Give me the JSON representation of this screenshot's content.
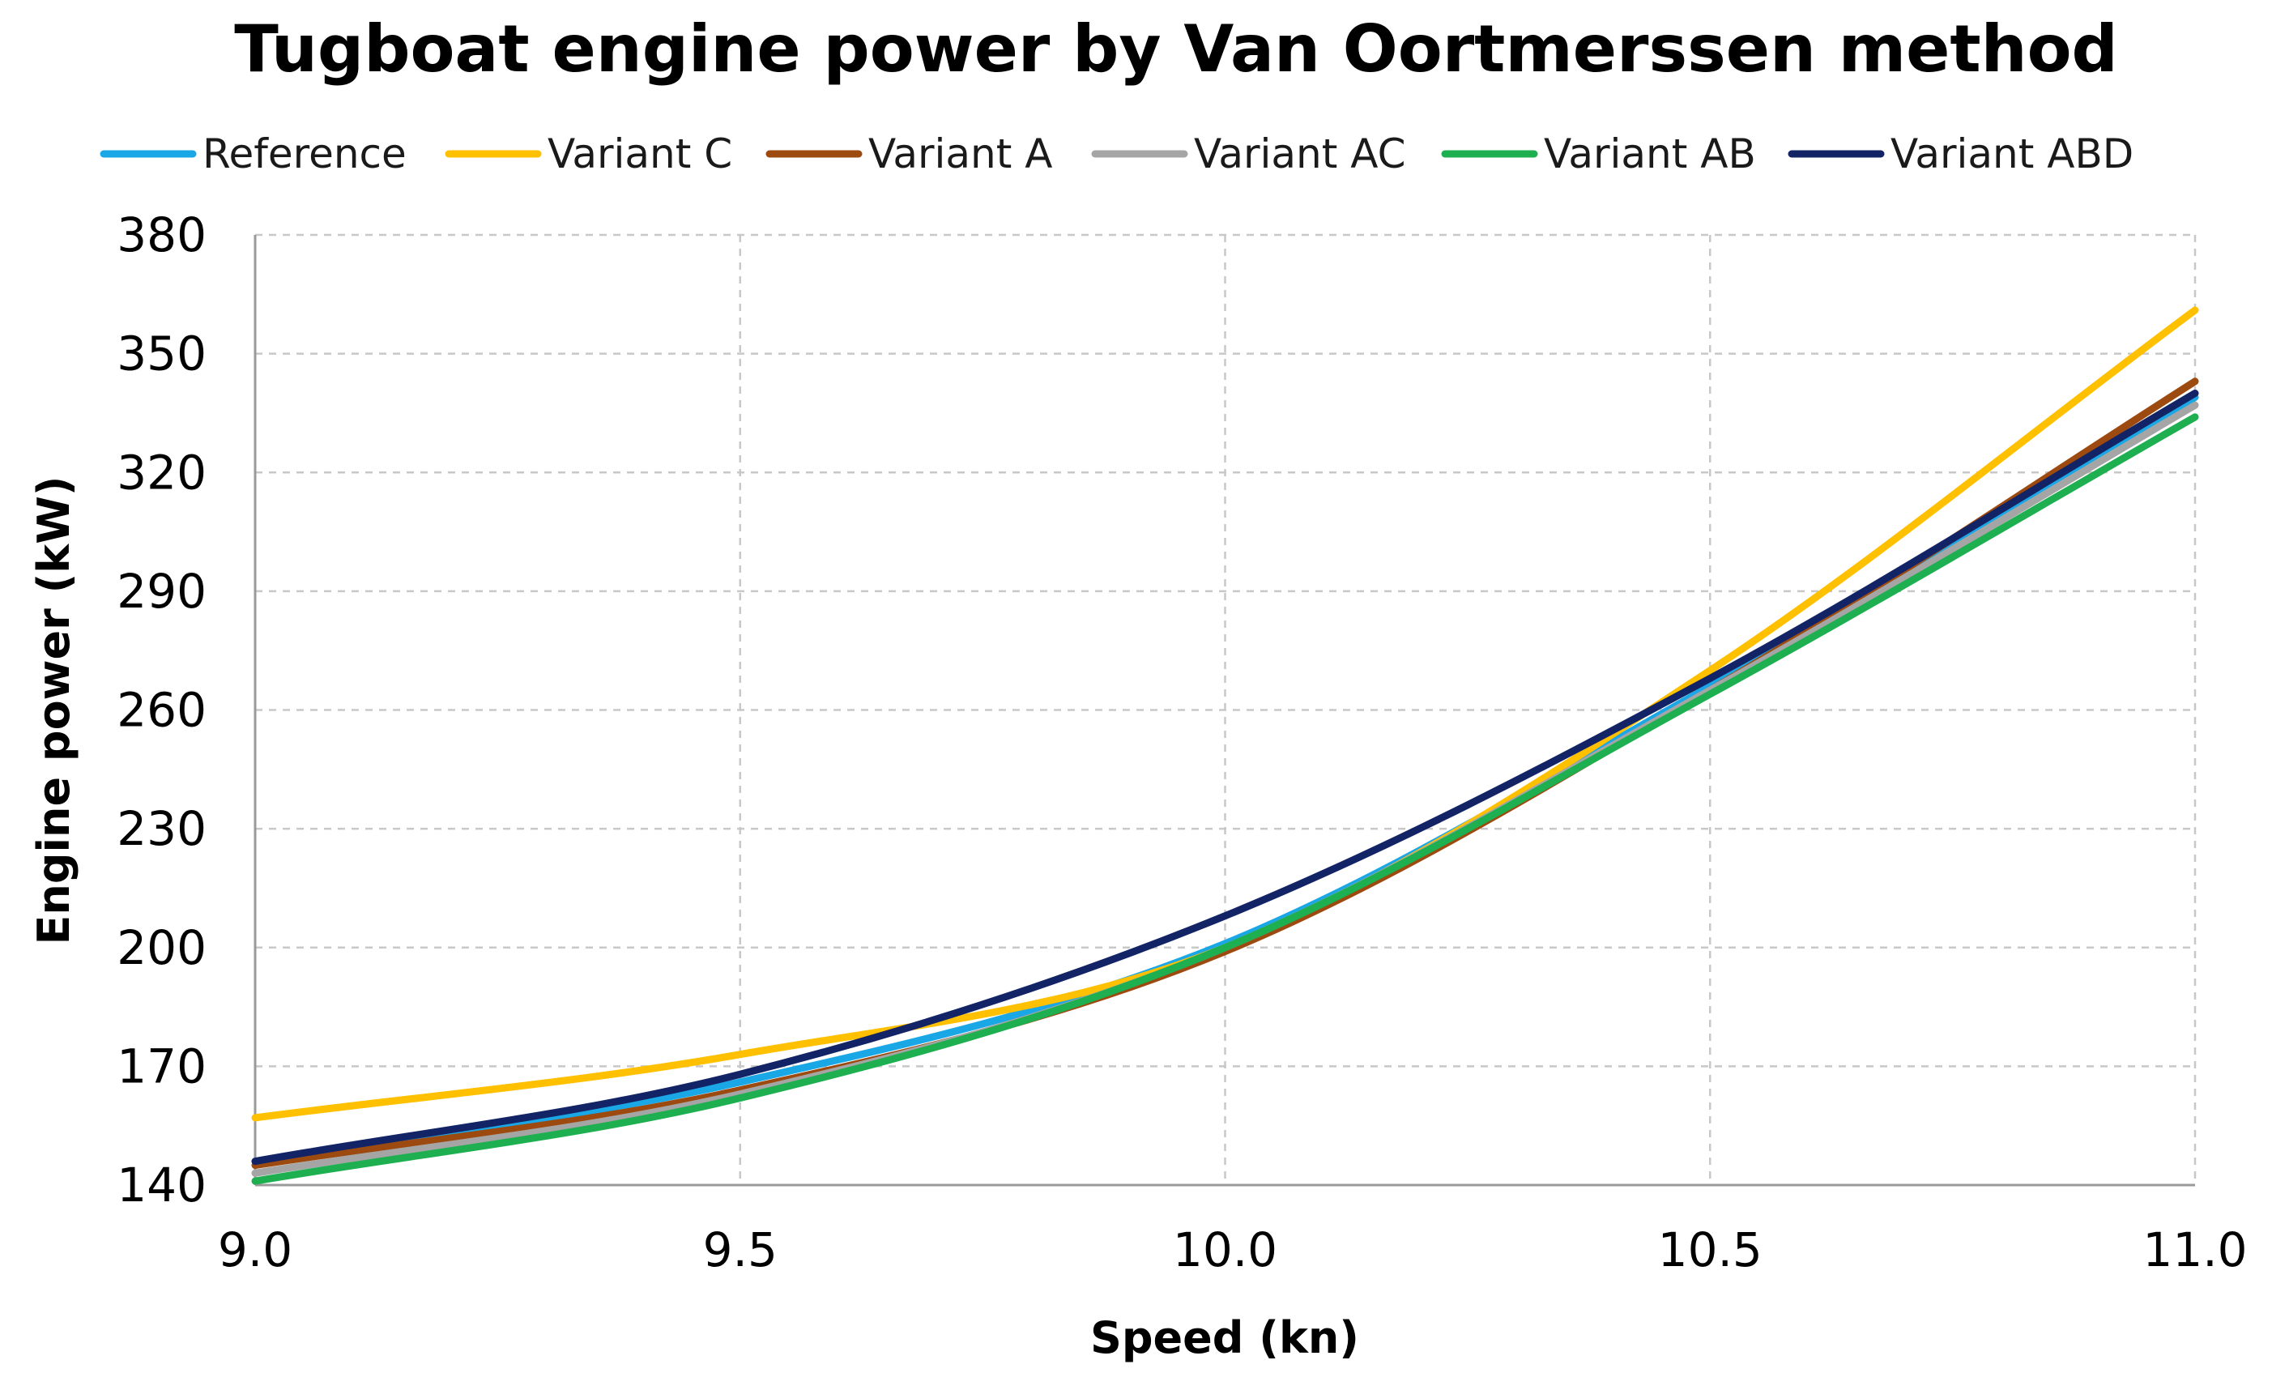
{
  "chart_data": {
    "type": "line",
    "title": "Tugboat engine power by Van Oortmerssen method",
    "xlabel": "Speed (kn)",
    "ylabel": "Engine power (kW)",
    "xlim": [
      9.0,
      11.0
    ],
    "ylim": [
      140,
      380
    ],
    "x_ticks": [
      9.0,
      9.5,
      10.0,
      10.5,
      11.0
    ],
    "x_tick_labels": [
      "9.0",
      "9.5",
      "10.0",
      "10.5",
      "11.0"
    ],
    "y_ticks": [
      140,
      170,
      200,
      230,
      260,
      290,
      320,
      350,
      380
    ],
    "y_tick_labels": [
      "140",
      "170",
      "200",
      "230",
      "260",
      "290",
      "320",
      "350",
      "380"
    ],
    "grid": true,
    "legend_position": "top",
    "x": [
      9.0,
      9.5,
      10.0,
      10.5,
      11.0
    ],
    "series": [
      {
        "name": "Reference",
        "color": "#1aa7e6",
        "values": [
          146,
          166,
          201,
          266,
          339
        ]
      },
      {
        "name": "Variant C",
        "color": "#ffc000",
        "values": [
          157,
          173,
          200,
          270,
          361
        ]
      },
      {
        "name": "Variant A",
        "color": "#9c4a0f",
        "values": [
          145,
          164,
          199,
          265,
          343
        ]
      },
      {
        "name": "Variant AC",
        "color": "#a5a5a5",
        "values": [
          143,
          163,
          200,
          265,
          337
        ]
      },
      {
        "name": "Variant AB",
        "color": "#1eb050",
        "values": [
          141,
          162,
          200,
          264,
          334
        ]
      },
      {
        "name": "Variant ABD",
        "color": "#122466",
        "values": [
          146,
          168,
          208,
          268,
          340
        ]
      }
    ]
  }
}
